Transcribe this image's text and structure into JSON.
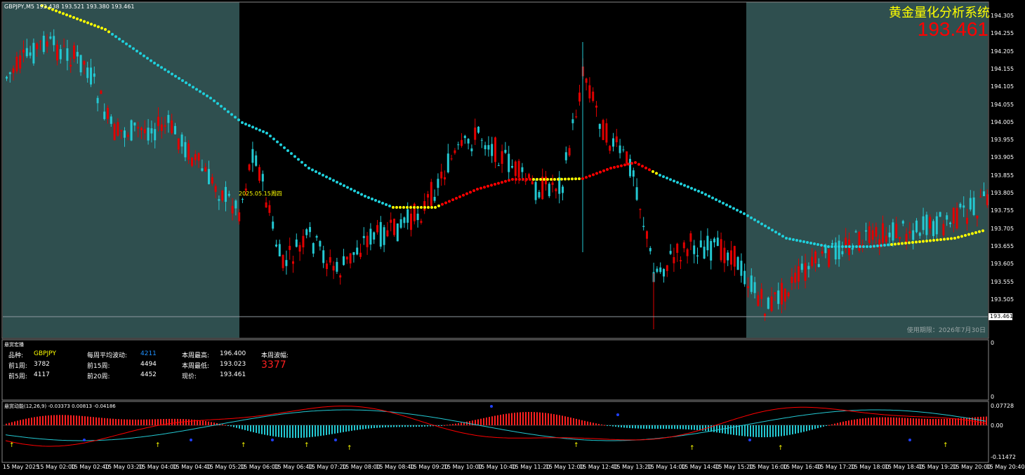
{
  "main": {
    "symbol_info": "GBPJPY,M5  193.438 193.521 193.380 193.461",
    "brand_title": "黄金量化分析系统",
    "big_price": "193.461",
    "current_price_tag": "193.461",
    "date_marker": "2025.05.15周四",
    "expiry": "使用期限：2026年7月30日",
    "price_axis": [
      "194.305",
      "194.255",
      "194.205",
      "194.155",
      "194.105",
      "194.055",
      "194.005",
      "193.955",
      "193.905",
      "193.855",
      "193.805",
      "193.755",
      "193.705",
      "193.655",
      "193.605",
      "193.555",
      "193.505"
    ],
    "colors": {
      "up": "#e00000",
      "down": "#23c8d2",
      "shade": "#2f4f4f",
      "ma_cyan": "#1fd0dc",
      "ma_yellow": "#ffff00",
      "ma_red": "#ff0000"
    }
  },
  "info_panel": {
    "title": "悬赏宏播",
    "axis_top": "0",
    "axis_bottom": "0",
    "rows": [
      [
        {
          "label": "品种:",
          "value": "GBPJPY",
          "value_color": "#ffff00"
        },
        {
          "label": "每周平均波动:",
          "value": "4211",
          "value_color": "#1e90ff"
        },
        {
          "label": "本周最高:",
          "value": "196.400",
          "value_color": "#ffffff"
        },
        {
          "label": "本周波幅:",
          "value": "",
          "value_color": "#ffffff"
        }
      ],
      [
        {
          "label": "前1周:",
          "value": "3782",
          "value_color": "#ffffff"
        },
        {
          "label": "前15周:",
          "value": "4494",
          "value_color": "#ffffff"
        },
        {
          "label": "本周最低:",
          "value": "193.023",
          "value_color": "#ffffff"
        },
        {
          "label": "",
          "value": "3377",
          "value_color": "#ff2020"
        }
      ],
      [
        {
          "label": "前5周:",
          "value": "4117",
          "value_color": "#ffffff"
        },
        {
          "label": "前20周:",
          "value": "4452",
          "value_color": "#ffffff"
        },
        {
          "label": "现价:",
          "value": "193.461",
          "value_color": "#ffffff"
        },
        {
          "label": "",
          "value": "",
          "value_color": "#ffffff"
        }
      ]
    ]
  },
  "macd": {
    "title": "悬赏动能(12,26,9) -0.03373 0.00813 -0.04186",
    "axis": [
      "0.07728",
      "0.00",
      "-0.11472"
    ]
  },
  "time_axis": [
    "15 May 2025",
    "15 May 02:00",
    "15 May 02:40",
    "15 May 03:20",
    "15 May 04:00",
    "15 May 04:40",
    "15 May 05:20",
    "15 May 06:00",
    "15 May 06:40",
    "15 May 07:20",
    "15 May 08:00",
    "15 May 08:40",
    "15 May 09:20",
    "15 May 10:00",
    "15 May 10:40",
    "15 May 11:20",
    "15 May 12:00",
    "15 May 12:40",
    "15 May 13:20",
    "15 May 14:00",
    "15 May 14:40",
    "15 May 15:20",
    "15 May 16:00",
    "15 May 16:40",
    "15 May 17:20",
    "15 May 18:00",
    "15 May 18:40",
    "15 May 19:20",
    "15 May 20:00",
    "15 May 20:40"
  ]
}
